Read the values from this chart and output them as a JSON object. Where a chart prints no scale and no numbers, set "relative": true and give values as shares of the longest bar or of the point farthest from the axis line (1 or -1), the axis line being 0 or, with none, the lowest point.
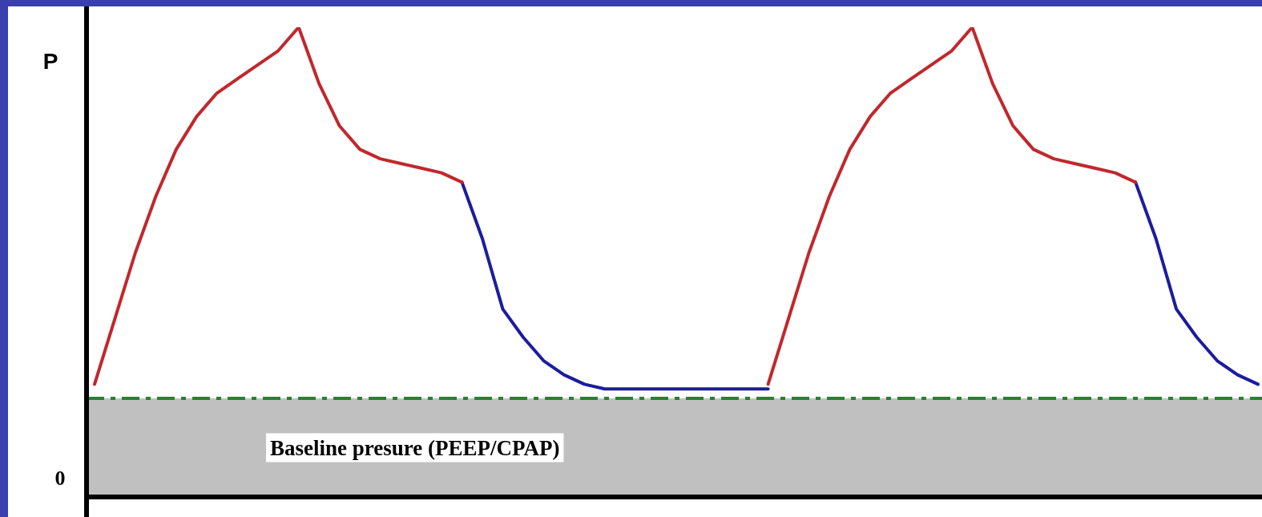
{
  "chart_data": {
    "type": "line",
    "relative": true,
    "ylabel": "P",
    "categories": [
      null,
      null,
      null,
      null,
      null,
      null,
      null,
      null,
      null,
      null,
      null,
      null,
      null,
      null,
      null,
      null,
      null,
      null,
      null,
      null,
      null,
      null,
      null,
      null,
      null,
      null,
      null,
      null,
      null,
      null,
      null,
      null,
      null,
      null,
      null,
      null,
      null,
      null,
      null,
      null,
      null,
      null,
      null,
      null,
      null,
      null,
      null,
      null,
      null,
      null,
      null,
      null,
      null,
      null,
      null,
      null,
      null,
      null
    ],
    "series": [
      {
        "color": "#c0282d",
        "values": [
          0.24,
          0.38,
          0.52,
          0.64,
          0.74,
          0.81,
          0.86,
          0.89,
          0.92,
          0.95,
          1.0,
          0.88,
          0.79,
          0.74,
          0.72,
          0.71,
          0.7,
          0.69,
          0.67,
          null,
          null,
          null,
          null,
          null,
          null,
          null,
          null,
          null,
          null,
          null,
          null,
          null,
          null,
          null,
          null,
          null,
          null,
          null,
          null,
          null,
          null,
          null,
          null,
          null,
          null,
          null,
          null,
          null,
          null,
          null,
          null,
          null,
          null,
          null,
          null,
          null,
          null,
          null
        ]
      },
      {
        "color": "#1c1c9e",
        "values": [
          null,
          null,
          null,
          null,
          null,
          null,
          null,
          null,
          null,
          null,
          null,
          null,
          null,
          null,
          null,
          null,
          null,
          null,
          0.67,
          0.55,
          0.4,
          0.34,
          0.29,
          0.26,
          0.24,
          0.23,
          0.23,
          0.23,
          0.23,
          0.23,
          0.23,
          0.23,
          0.23,
          0.23,
          null,
          null,
          null,
          null,
          null,
          null,
          null,
          null,
          null,
          null,
          null,
          null,
          null,
          null,
          null,
          null,
          null,
          null,
          null,
          null,
          null,
          null,
          null,
          null
        ]
      },
      {
        "color": "#c0282d",
        "values": [
          null,
          null,
          null,
          null,
          null,
          null,
          null,
          null,
          null,
          null,
          null,
          null,
          null,
          null,
          null,
          null,
          null,
          null,
          null,
          null,
          null,
          null,
          null,
          null,
          null,
          null,
          null,
          null,
          null,
          null,
          null,
          null,
          null,
          0.24,
          0.38,
          0.52,
          0.64,
          0.74,
          0.81,
          0.86,
          0.89,
          0.92,
          0.95,
          1.0,
          0.88,
          0.79,
          0.74,
          0.72,
          0.71,
          0.7,
          0.69,
          0.67,
          null,
          null,
          null,
          null,
          null,
          null
        ]
      },
      {
        "color": "#1c1c9e",
        "values": [
          null,
          null,
          null,
          null,
          null,
          null,
          null,
          null,
          null,
          null,
          null,
          null,
          null,
          null,
          null,
          null,
          null,
          null,
          null,
          null,
          null,
          null,
          null,
          null,
          null,
          null,
          null,
          null,
          null,
          null,
          null,
          null,
          null,
          null,
          null,
          null,
          null,
          null,
          null,
          null,
          null,
          null,
          null,
          null,
          null,
          null,
          null,
          null,
          null,
          null,
          null,
          0.67,
          0.55,
          0.4,
          0.34,
          0.29,
          0.26,
          0.24
        ]
      }
    ],
    "ref_lines": [
      {
        "axis": "y",
        "value": 0.21,
        "color": "#2e7d32",
        "line_style": "dashed"
      }
    ],
    "bands": [
      {
        "axis": "y",
        "from": 0,
        "to": 0.21,
        "label": "Baseline presure (PEEP/CPAP)",
        "color": "#c0c0c0"
      }
    ],
    "annotations": [
      "0"
    ],
    "marker": "none",
    "line_style": "solid"
  }
}
